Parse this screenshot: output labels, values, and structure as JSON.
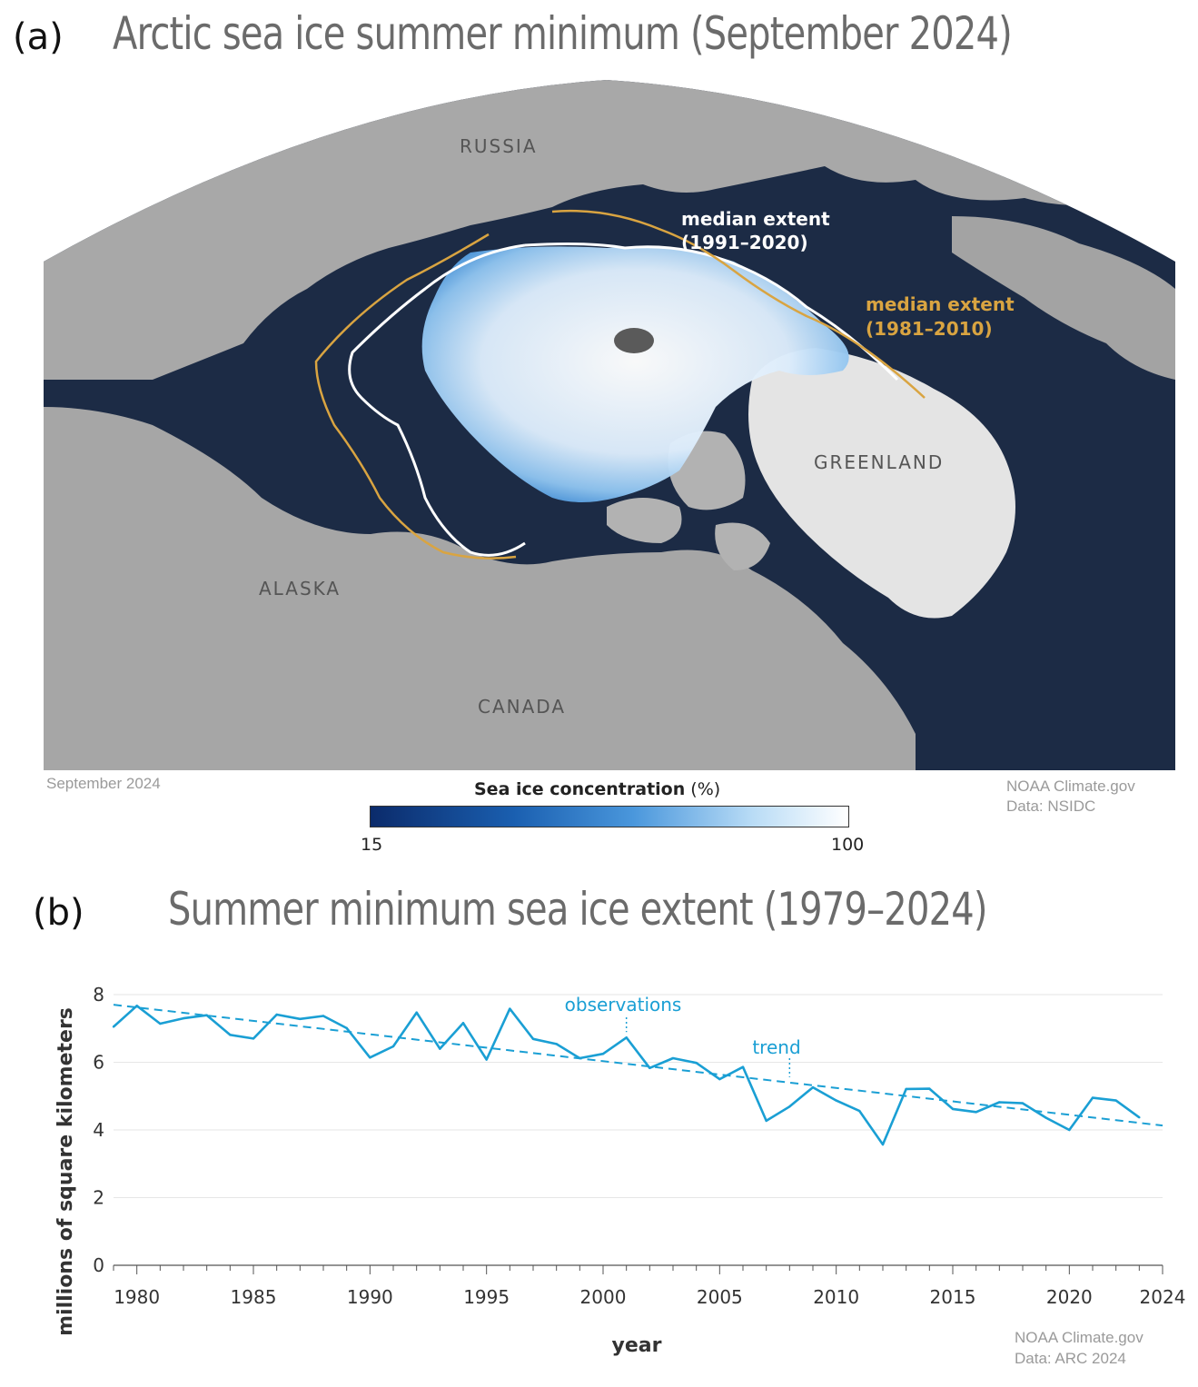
{
  "panel_a": {
    "label": "(a)",
    "title": "Arctic sea ice summer minimum (September 2024)",
    "map_labels": {
      "russia": "RUSSIA",
      "greenland": "GREENLAND",
      "alaska": "ALASKA",
      "canada": "CANADA",
      "median_1991_line1": "median extent",
      "median_1991_line2": "(1991–2020)",
      "median_1981_line1": "median extent",
      "median_1981_line2": "(1981–2010)"
    },
    "date_caption": "September 2024",
    "credit_line1": "NOAA Climate.gov",
    "credit_line2": "Data: NSIDC",
    "colorbar": {
      "title_bold": "Sea ice concentration",
      "title_unit": "(%)",
      "min_label": "15",
      "max_label": "100"
    },
    "colors": {
      "ocean": "#1c2b45",
      "land": "#a9a9a9",
      "ice": "#eaf4fd",
      "median_1991": "#ffffff",
      "median_1981": "#d9a441"
    }
  },
  "panel_b": {
    "label": "(b)",
    "title": "Summer minimum sea ice extent (1979–2024)",
    "credit_line1": "NOAA Climate.gov",
    "credit_line2": "Data: ARC 2024"
  },
  "chart_data": {
    "type": "line",
    "title": "Summer minimum sea ice extent (1979–2024)",
    "xlabel": "year",
    "ylabel": "millions of square kilometers",
    "xlim": [
      1979,
      2024
    ],
    "ylim": [
      0,
      8
    ],
    "x_ticks": [
      "1980",
      "1985",
      "1990",
      "1995",
      "2000",
      "2005",
      "2010",
      "2015",
      "2020",
      "2024"
    ],
    "y_ticks": [
      "0",
      "2",
      "4",
      "6",
      "8"
    ],
    "grid": true,
    "color": "#1a9fd4",
    "series": [
      {
        "name": "observations",
        "x": [
          1979,
          1980,
          1981,
          1982,
          1983,
          1984,
          1985,
          1986,
          1987,
          1988,
          1989,
          1990,
          1991,
          1992,
          1993,
          1994,
          1995,
          1996,
          1997,
          1998,
          1999,
          2000,
          2001,
          2002,
          2003,
          2004,
          2005,
          2006,
          2007,
          2008,
          2009,
          2010,
          2011,
          2012,
          2013,
          2014,
          2015,
          2016,
          2017,
          2018,
          2019,
          2020,
          2021,
          2022,
          2023
        ],
        "values": [
          7.05,
          7.67,
          7.14,
          7.3,
          7.39,
          6.81,
          6.7,
          7.41,
          7.28,
          7.37,
          7.01,
          6.14,
          6.47,
          7.47,
          6.4,
          7.16,
          6.08,
          7.58,
          6.69,
          6.54,
          6.12,
          6.25,
          6.73,
          5.83,
          6.12,
          5.98,
          5.5,
          5.86,
          4.27,
          4.69,
          5.26,
          4.87,
          4.56,
          3.57,
          5.21,
          5.22,
          4.62,
          4.53,
          4.82,
          4.79,
          4.36,
          4.0,
          4.95,
          4.87,
          4.37
        ]
      },
      {
        "name": "trend",
        "x": [
          1979,
          2024
        ],
        "values": [
          7.7,
          4.13
        ]
      }
    ],
    "annotations": [
      "observations",
      "trend"
    ]
  }
}
